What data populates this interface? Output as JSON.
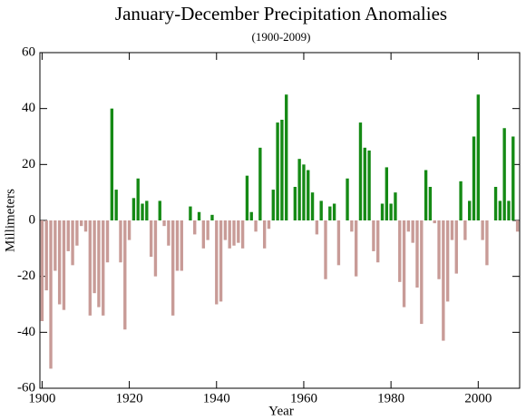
{
  "chart_data": {
    "type": "bar",
    "title": "January-December Precipitation Anomalies",
    "subtitle": "(1900-2009)",
    "x_label": "Year",
    "y_label": "Millimeters",
    "x": [
      1900,
      1901,
      1902,
      1903,
      1904,
      1905,
      1906,
      1907,
      1908,
      1909,
      1910,
      1911,
      1912,
      1913,
      1914,
      1915,
      1916,
      1917,
      1918,
      1919,
      1920,
      1921,
      1922,
      1923,
      1924,
      1925,
      1926,
      1927,
      1928,
      1929,
      1930,
      1931,
      1932,
      1933,
      1934,
      1935,
      1936,
      1937,
      1938,
      1939,
      1940,
      1941,
      1942,
      1943,
      1944,
      1945,
      1946,
      1947,
      1948,
      1949,
      1950,
      1951,
      1952,
      1953,
      1954,
      1955,
      1956,
      1957,
      1958,
      1959,
      1960,
      1961,
      1962,
      1963,
      1964,
      1965,
      1966,
      1967,
      1968,
      1969,
      1970,
      1971,
      1972,
      1973,
      1974,
      1975,
      1976,
      1977,
      1978,
      1979,
      1980,
      1981,
      1982,
      1983,
      1984,
      1985,
      1986,
      1987,
      1988,
      1989,
      1990,
      1991,
      1992,
      1993,
      1994,
      1995,
      1996,
      1997,
      1998,
      1999,
      2000,
      2001,
      2002,
      2003,
      2004,
      2005,
      2006,
      2007,
      2008,
      2009
    ],
    "values": [
      -36,
      -25,
      -53,
      -18,
      -30,
      -32,
      -11,
      -16,
      -9,
      -2,
      -4,
      -34,
      -26,
      -31,
      -34,
      -15,
      40,
      11,
      -15,
      -39,
      -7,
      8,
      15,
      6,
      7,
      -13,
      -20,
      7,
      -2,
      -9,
      -34,
      -18,
      -18,
      0,
      5,
      -5,
      3,
      -10,
      -7,
      2,
      -30,
      -29,
      -7,
      -10,
      -9,
      -8,
      -10,
      16,
      3,
      -4,
      26,
      -10,
      -3,
      11,
      35,
      36,
      45,
      0,
      12,
      22,
      20,
      18,
      10,
      -5,
      7,
      -21,
      5,
      6,
      -16,
      0,
      15,
      -4,
      -20,
      35,
      26,
      25,
      -11,
      -15,
      6,
      19,
      6,
      10,
      -22,
      -31,
      -4,
      -8,
      -24,
      -37,
      18,
      12,
      -1,
      -21,
      -43,
      -29,
      -7,
      -19,
      14,
      -7,
      7,
      30,
      45,
      -7,
      -16,
      0,
      12,
      7,
      33,
      7,
      30,
      -4
    ],
    "positive_color": "#158a15",
    "negative_color": "#c89b97",
    "xlim": [
      1899.5,
      2009.5
    ],
    "xticks": [
      1900,
      1920,
      1940,
      1960,
      1980,
      2000
    ],
    "ylim": [
      -60,
      60
    ],
    "yticks": [
      -60,
      -40,
      -20,
      0,
      20,
      40,
      60
    ],
    "grid": false
  }
}
